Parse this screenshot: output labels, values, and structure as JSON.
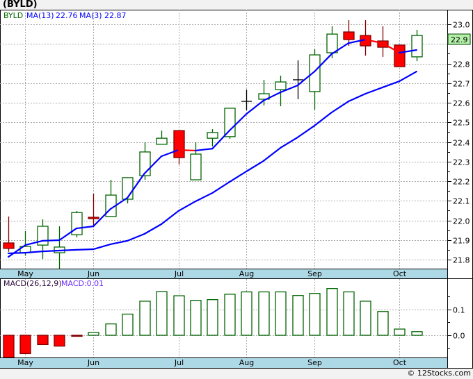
{
  "title": "(BYLD)",
  "footer": "© 12Stocks.com",
  "legend": {
    "symbol": "BYLD",
    "ma13_label": "MA(13)",
    "ma13_value": "22.76",
    "ma3_label": "MA(3)",
    "ma3_value": "22.87"
  },
  "macd_legend": {
    "label": "MACD(26,12,9)",
    "value": "MACD:0.01"
  },
  "last_price_label": "22.9",
  "colors": {
    "up": "#006400",
    "down": "#ff0000",
    "down_edge": "#800000",
    "ma": "#0000ff",
    "band": "#add8e6",
    "last_price_bg": "#b4f0a8"
  },
  "chart_data": [
    {
      "type": "candlestick",
      "title": "BYLD",
      "ylim": [
        21.75,
        23.05
      ],
      "y_ticks": [
        "23.0",
        "22.9",
        "22.8",
        "22.7",
        "22.6",
        "22.5",
        "22.4",
        "22.3",
        "22.2",
        "22.1",
        "22.0",
        "21.9",
        "21.8"
      ],
      "months": [
        {
          "label": "May",
          "index": 1
        },
        {
          "label": "Jun",
          "index": 5
        },
        {
          "label": "Jul",
          "index": 10
        },
        {
          "label": "Aug",
          "index": 14
        },
        {
          "label": "Sep",
          "index": 18
        },
        {
          "label": "Oct",
          "index": 23
        }
      ],
      "ohlc": [
        [
          21.885,
          22.02,
          21.84,
          21.857
        ],
        [
          21.835,
          21.945,
          21.82,
          21.867
        ],
        [
          21.874,
          22.005,
          21.803,
          21.97
        ],
        [
          21.835,
          21.97,
          21.75,
          21.864
        ],
        [
          21.927,
          22.048,
          21.913,
          22.04
        ],
        [
          22.016,
          22.136,
          21.973,
          22.009
        ],
        [
          22.02,
          22.207,
          22.02,
          22.129
        ],
        [
          22.108,
          22.22,
          22.087,
          22.218
        ],
        [
          22.228,
          22.398,
          22.207,
          22.349
        ],
        [
          22.388,
          22.458,
          22.388,
          22.419
        ],
        [
          22.458,
          22.458,
          22.285,
          22.32
        ],
        [
          22.207,
          22.398,
          22.207,
          22.338
        ],
        [
          22.419,
          22.465,
          22.377,
          22.448
        ],
        [
          22.427,
          22.572,
          22.416,
          22.572
        ],
        [
          22.607,
          22.667,
          22.561,
          22.607
        ],
        [
          22.618,
          22.717,
          22.586,
          22.646
        ],
        [
          22.667,
          22.738,
          22.582,
          22.706
        ],
        [
          22.717,
          22.816,
          22.618,
          22.717
        ],
        [
          22.657,
          22.873,
          22.565,
          22.844
        ],
        [
          22.855,
          22.99,
          22.827,
          22.95
        ],
        [
          22.961,
          23.021,
          22.89,
          22.922
        ],
        [
          22.943,
          23.021,
          22.84,
          22.89
        ],
        [
          22.915,
          22.99,
          22.834,
          22.883
        ],
        [
          22.894,
          22.894,
          22.784,
          22.784
        ],
        [
          22.834,
          22.972,
          22.812,
          22.943
        ]
      ],
      "series": [
        {
          "name": "MA(3)",
          "values": [
            21.814,
            21.874,
            21.896,
            21.899,
            21.959,
            21.97,
            22.058,
            22.115,
            22.239,
            22.327,
            22.359,
            22.356,
            22.366,
            22.458,
            22.543,
            22.611,
            22.653,
            22.688,
            22.759,
            22.848,
            22.904,
            22.922,
            22.904,
            22.855,
            22.869
          ]
        },
        {
          "name": "MA(13)",
          "values": [
            21.832,
            21.835,
            21.842,
            21.846,
            21.85,
            21.853,
            21.878,
            21.896,
            21.931,
            21.981,
            22.048,
            22.097,
            22.14,
            22.196,
            22.25,
            22.303,
            22.37,
            22.423,
            22.483,
            22.55,
            22.607,
            22.646,
            22.678,
            22.71,
            22.759
          ]
        }
      ]
    },
    {
      "type": "bar",
      "title": "MACD(26,12,9)",
      "ylim": [
        -0.086,
        0.22
      ],
      "y_ticks": [
        "0.1",
        "0.0"
      ],
      "values": [
        -0.086,
        -0.071,
        -0.036,
        -0.042,
        -0.004,
        0.011,
        0.044,
        0.082,
        0.132,
        0.169,
        0.153,
        0.135,
        0.138,
        0.159,
        0.168,
        0.168,
        0.168,
        0.154,
        0.162,
        0.181,
        0.168,
        0.132,
        0.092,
        0.024,
        0.014
      ]
    }
  ]
}
